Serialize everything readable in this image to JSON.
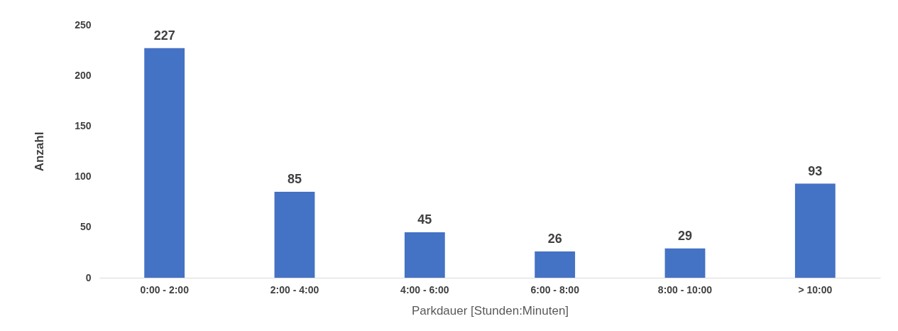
{
  "chart_data": {
    "type": "bar",
    "xlabel": "Parkdauer [Stunden:Minuten]",
    "ylabel": "Anzahl",
    "categories": [
      "0:00 - 2:00",
      "2:00 - 4:00",
      "4:00 - 6:00",
      "6:00 - 8:00",
      "8:00 - 10:00",
      "> 10:00"
    ],
    "values": [
      227,
      85,
      45,
      26,
      29,
      93
    ],
    "color": "#4472c4",
    "ylim": [
      0,
      250
    ],
    "yticks": [
      0,
      50,
      100,
      150,
      200,
      250
    ],
    "grid": false,
    "data_labels": true
  }
}
